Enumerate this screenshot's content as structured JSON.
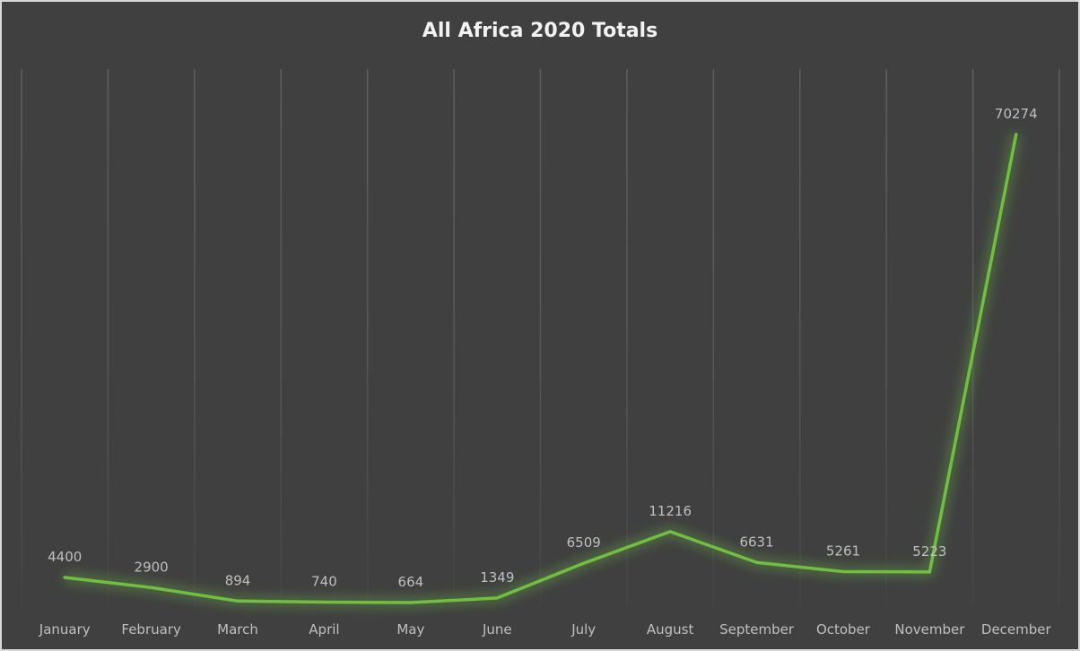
{
  "chart_data": {
    "type": "line",
    "title": "All Africa 2020 Totals",
    "categories": [
      "January",
      "February",
      "March",
      "April",
      "May",
      "June",
      "July",
      "August",
      "September",
      "October",
      "November",
      "December"
    ],
    "values": [
      4400,
      2900,
      894,
      740,
      664,
      1349,
      6509,
      11216,
      6631,
      5261,
      5223,
      70274
    ],
    "ylim": [
      0,
      80000
    ],
    "y_grid_step": 10000,
    "grid": true,
    "y_axis_labels_shown": false,
    "data_labels": true,
    "legend": "none",
    "colors": {
      "background": "#404040",
      "line": "#70bf41",
      "grid": "#595959",
      "text": "#bfbfbf",
      "title": "#f2f2f2"
    }
  }
}
